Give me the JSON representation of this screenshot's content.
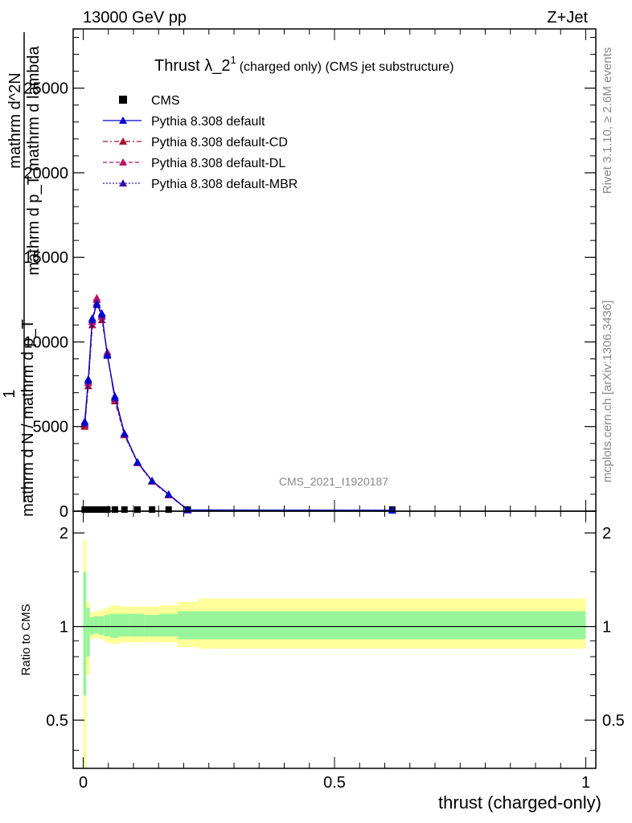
{
  "header": {
    "left": "13000 GeV pp",
    "right": "Z+Jet"
  },
  "side_labels": {
    "rivet": "Rivet 3.1.10, ≥ 2.6M events",
    "mcplots": "mcplots.cern.ch [arXiv:1306.3436]"
  },
  "chart_data": [
    {
      "type": "line",
      "title": "Thrust λ_2",
      "title_sup": "1",
      "subtitle": "(charged only) (CMS jet substructure)",
      "watermark": "CMS_2021_I1920187",
      "ylabel_numerator": "1",
      "ylabel_denominator": "mathrm d N / mathrm d p_T",
      "ylabel_main": "mathrm d^2N",
      "ylabel_main_den": "mathrm d p_T mathrm d lambda",
      "xlim": [
        -0.02,
        1.02
      ],
      "ylim": [
        0,
        28500
      ],
      "yticks": [
        0,
        5000,
        10000,
        15000,
        20000,
        25000
      ],
      "ytick_labels": [
        "0",
        "5000",
        "10000",
        "15000",
        "20000",
        "25000"
      ],
      "series": [
        {
          "name": "CMS",
          "marker": "square",
          "color": "#000000",
          "x": [
            0.003,
            0.01,
            0.018,
            0.027,
            0.037,
            0.048,
            0.063,
            0.082,
            0.108,
            0.137,
            0.17,
            0.208,
            0.615
          ],
          "values": [
            0,
            0,
            0,
            0,
            0,
            0,
            0,
            0,
            0,
            0,
            0,
            0,
            0
          ]
        },
        {
          "name": "Pythia 8.308 default",
          "marker": "triangle",
          "line": "solid",
          "color": "#0000cc",
          "x": [
            0.003,
            0.01,
            0.018,
            0.027,
            0.037,
            0.048,
            0.063,
            0.082,
            0.108,
            0.137,
            0.17,
            0.208,
            0.615
          ],
          "values": [
            5300,
            7800,
            11400,
            12200,
            11700,
            9200,
            6800,
            4600,
            2900,
            1800,
            1000,
            70,
            50
          ]
        },
        {
          "name": "Pythia 8.308 default-CD",
          "marker": "triangle",
          "line": "dashdot",
          "color": "#aa1133",
          "x": [
            0.003,
            0.01,
            0.018,
            0.027,
            0.037,
            0.048,
            0.063,
            0.082,
            0.108,
            0.137,
            0.17,
            0.208,
            0.615
          ],
          "values": [
            5000,
            7400,
            11000,
            12500,
            11300,
            9400,
            6500,
            4500,
            2850,
            1750,
            950,
            65,
            45
          ]
        },
        {
          "name": "Pythia 8.308 default-DL",
          "marker": "triangle",
          "line": "dashed",
          "color": "#bb1166",
          "x": [
            0.003,
            0.01,
            0.018,
            0.027,
            0.037,
            0.048,
            0.063,
            0.082,
            0.108,
            0.137,
            0.17,
            0.208,
            0.615
          ],
          "values": [
            5100,
            7600,
            11200,
            12600,
            11500,
            9300,
            6600,
            4550,
            2880,
            1780,
            980,
            68,
            48
          ]
        },
        {
          "name": "Pythia 8.308 default-MBR",
          "marker": "triangle",
          "line": "dotted",
          "color": "#3311aa",
          "x": [
            0.003,
            0.01,
            0.018,
            0.027,
            0.037,
            0.048,
            0.063,
            0.082,
            0.108,
            0.137,
            0.17,
            0.208,
            0.615
          ],
          "values": [
            5200,
            7700,
            11300,
            12300,
            11600,
            9250,
            6700,
            4580,
            2890,
            1790,
            990,
            69,
            49
          ]
        }
      ]
    },
    {
      "type": "area",
      "ylabel": "Ratio to CMS",
      "xlabel": "thrust (charged-only)",
      "xlim": [
        -0.02,
        1.02
      ],
      "ylim": [
        0.35,
        2.35
      ],
      "yscale": "log",
      "yticks": [
        0.5,
        1,
        2
      ],
      "ytick_labels": [
        "0.5",
        "1",
        "2"
      ],
      "xticks": [
        0,
        0.5,
        1
      ],
      "xtick_labels": [
        "0",
        "0.5",
        "1"
      ],
      "bin_edges": [
        0,
        0.006,
        0.013,
        0.021,
        0.031,
        0.042,
        0.054,
        0.072,
        0.093,
        0.122,
        0.152,
        0.188,
        0.228,
        1.0
      ],
      "band_inner_lo": [
        0.6,
        0.8,
        0.94,
        0.95,
        0.94,
        0.93,
        0.92,
        0.93,
        0.93,
        0.93,
        0.93,
        0.91,
        0.91
      ],
      "band_inner_hi": [
        1.5,
        1.15,
        1.07,
        1.08,
        1.08,
        1.09,
        1.1,
        1.1,
        1.1,
        1.09,
        1.1,
        1.12,
        1.12
      ],
      "band_outer_lo": [
        0.35,
        0.7,
        0.91,
        0.92,
        0.91,
        0.89,
        0.88,
        0.89,
        0.89,
        0.89,
        0.89,
        0.86,
        0.85
      ],
      "band_outer_hi": [
        1.9,
        1.2,
        1.11,
        1.12,
        1.13,
        1.15,
        1.17,
        1.16,
        1.16,
        1.16,
        1.17,
        1.2,
        1.23
      ],
      "inner_color": "#99f599",
      "outer_color": "#ffff99"
    }
  ]
}
